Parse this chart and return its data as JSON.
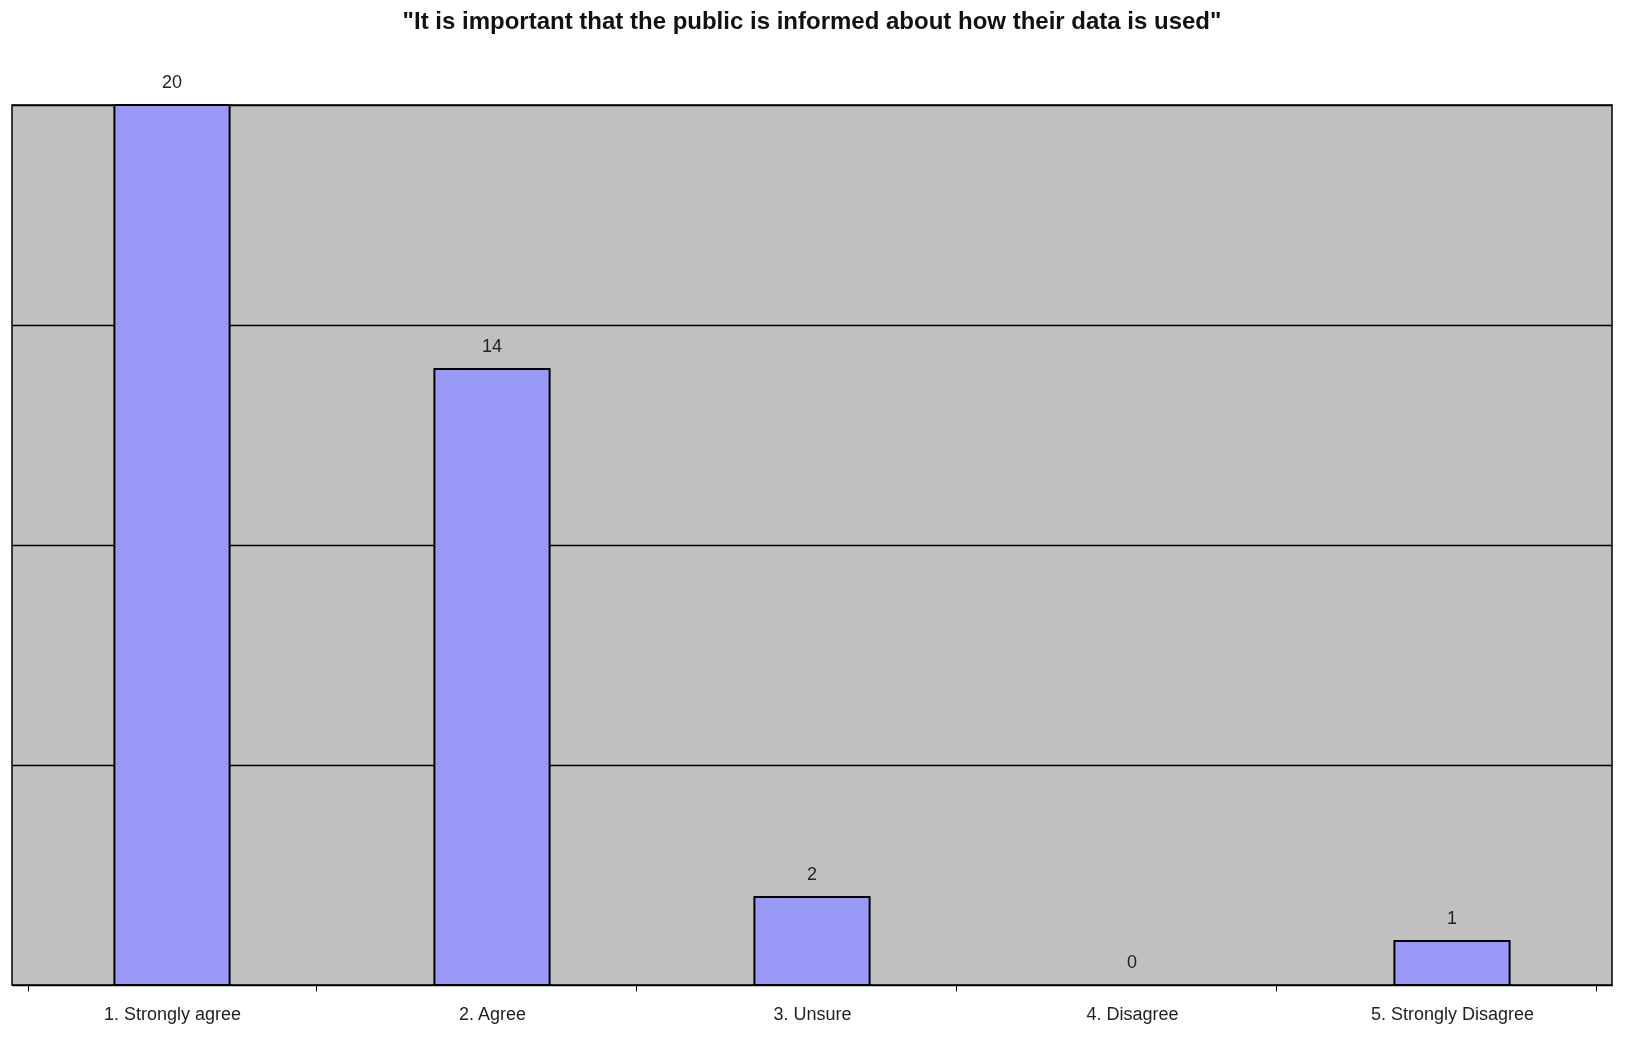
{
  "chart_data": {
    "type": "bar",
    "title": "\"It is important that the public is informed about how their data is used\"",
    "categories": [
      "1. Strongly agree",
      "2. Agree",
      "3. Unsure",
      "4. Disagree",
      "5. Strongly Disagree"
    ],
    "values": [
      20,
      14,
      2,
      0,
      1
    ],
    "color": "#9999f8",
    "ylim": [
      0,
      20
    ],
    "yticks": [
      {
        "value": 0,
        "label": null
      },
      {
        "value": 5,
        "label": null
      },
      {
        "value": 10,
        "label": null
      },
      {
        "value": 15,
        "label": null
      },
      {
        "value": 20,
        "label": null
      }
    ],
    "tick_labels": "x",
    "grid": "y",
    "data_labels": true
  }
}
